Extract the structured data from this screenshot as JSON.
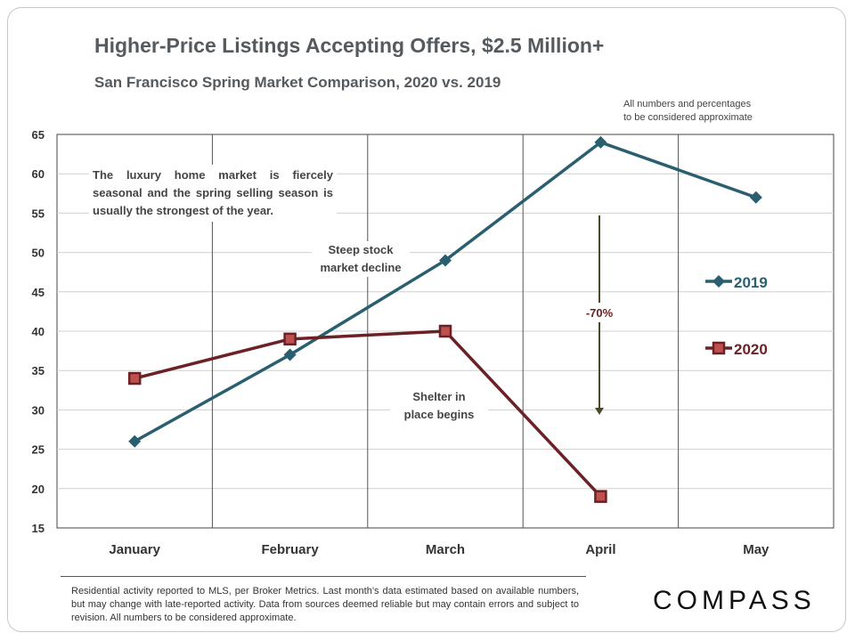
{
  "header": {
    "title": "Higher-Price Listings Accepting Offers, $2.5 Million+",
    "subtitle": "San Francisco Spring Market Comparison,  2020 vs. 2019",
    "approx_line1": "All numbers and percentages",
    "approx_line2": "to be considered approximate"
  },
  "annotations": {
    "luxury": "The luxury home market is fiercely seasonal and the spring selling season is usually the strongest of the year.",
    "stock_line1": "Steep stock",
    "stock_line2": "market decline",
    "shelter_line1": "Shelter in",
    "shelter_line2": "place  begins",
    "decline_pct": "-70%"
  },
  "footer": {
    "footnote": "Residential activity reported to MLS, per Broker Metrics. Last month’s data estimated based on available numbers, but may change with late-reported activity. Data from sources deemed reliable but may contain errors and subject to revision. All numbers to be considered approximate.",
    "logo": "COMPASS"
  },
  "chart_data": {
    "type": "line",
    "title": "Higher-Price Listings Accepting Offers, $2.5 Million+",
    "categories": [
      "January",
      "February",
      "March",
      "April",
      "May"
    ],
    "ylim": [
      15,
      65
    ],
    "yticks": [
      15,
      20,
      25,
      30,
      35,
      40,
      45,
      50,
      55,
      60,
      65
    ],
    "grid": true,
    "legend": "right",
    "series": [
      {
        "name": "2019",
        "values": [
          26,
          37,
          49,
          64,
          57
        ],
        "color": "#2a5f6f",
        "marker": "diamond"
      },
      {
        "name": "2020",
        "values": [
          34,
          39,
          40,
          19,
          null
        ],
        "color": "#6b2126",
        "marker": "square"
      }
    ]
  },
  "colors": {
    "arrow": "#4a4a2a",
    "pct": "#6b2126",
    "grid": "#d0d0d0",
    "axis": "#444444"
  }
}
